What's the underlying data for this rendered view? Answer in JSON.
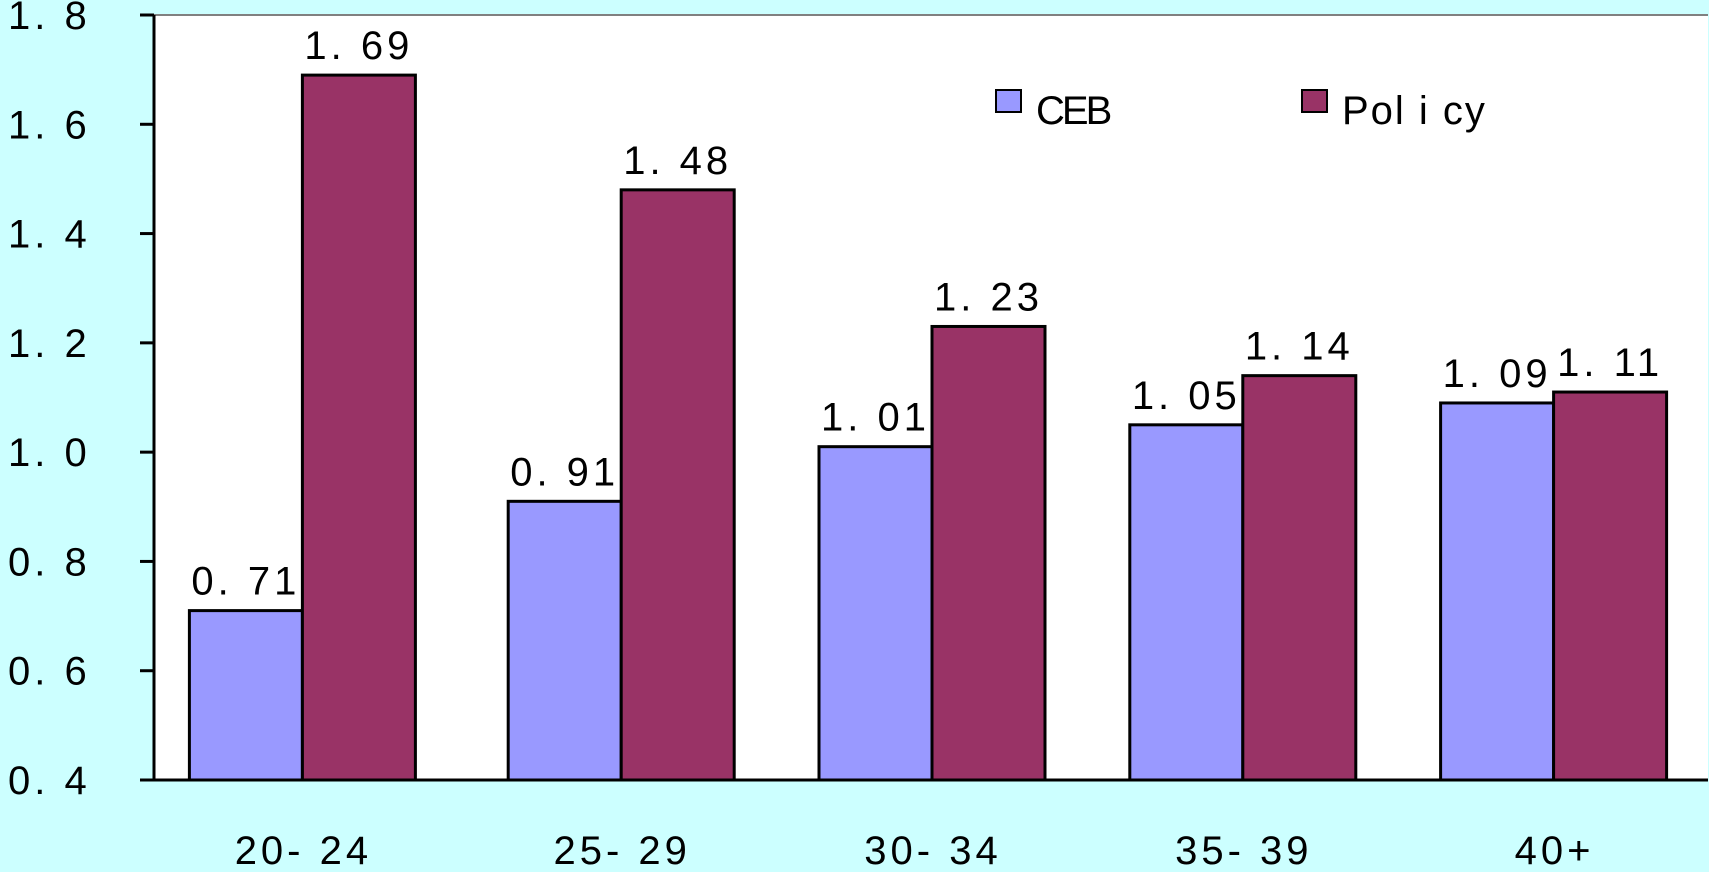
{
  "chart_data": {
    "type": "bar",
    "categories": [
      "20-24",
      "25-29",
      "30-34",
      "35-39",
      "40+"
    ],
    "category_labels": [
      "20- 24",
      "25- 29",
      "30- 34",
      "35- 39",
      "40+"
    ],
    "series": [
      {
        "name": "CEB",
        "legend_label": "CEB",
        "values": [
          0.71,
          0.91,
          1.01,
          1.05,
          1.09
        ],
        "value_labels": [
          "0. 71",
          "0. 91",
          "1. 01",
          "1. 05",
          "1. 09"
        ],
        "color": "#9999ff"
      },
      {
        "name": "Policy",
        "legend_label": "Pol i cy",
        "values": [
          1.69,
          1.48,
          1.23,
          1.14,
          1.11
        ],
        "value_labels": [
          "1. 69",
          "1. 48",
          "1. 23",
          "1. 14",
          "1. 11"
        ],
        "color": "#993366"
      }
    ],
    "ylim": [
      0.4,
      1.8
    ],
    "yticks": [
      0.4,
      0.6,
      0.8,
      1.0,
      1.2,
      1.4,
      1.6,
      1.8
    ],
    "ytick_labels": [
      "0. 4",
      "0. 6",
      "0. 8",
      "1. 0",
      "1. 2",
      "1. 4",
      "1. 6",
      "1. 8"
    ],
    "title": "",
    "xlabel": "",
    "ylabel": "",
    "grid": false,
    "legend_position": "top-right",
    "background_color": "#ccffff",
    "plot_background_color": "#ffffff"
  }
}
